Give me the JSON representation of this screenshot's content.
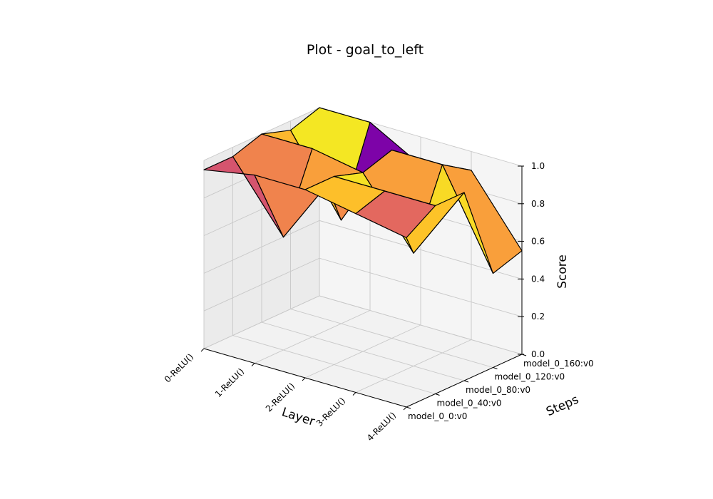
{
  "chart_data": {
    "type": "surface3d",
    "title": "Plot - goal_to_left",
    "xlabel": "Layer",
    "ylabel": "Steps",
    "zlabel": "Score",
    "x_categories": [
      "0-ReLU()",
      "1-ReLU()",
      "2-ReLU()",
      "3-ReLU()",
      "4-ReLU()"
    ],
    "y_categories": [
      "model_0_0:v0",
      "model_0_40:v0",
      "model_0_80:v0",
      "model_0_120:v0",
      "model_0_160:v0"
    ],
    "z_ticks": [
      "0.0",
      "0.2",
      "0.4",
      "0.6",
      "0.8",
      "1.0"
    ],
    "zlim": [
      0,
      1
    ],
    "colormap": "plasma",
    "grid": true,
    "cell_values": [
      [
        0.55,
        0.7,
        0.85,
        0.96
      ],
      [
        0.7,
        0.78,
        0.72,
        0.25
      ],
      [
        0.87,
        0.95,
        0.78,
        0.72
      ],
      [
        0.62,
        0.88,
        0.93,
        0.78
      ]
    ],
    "z_values": [
      [
        0.95,
        0.95,
        1.0,
        0.95,
        1.0
      ],
      [
        1.0,
        0.6,
        1.0,
        0.55,
        1.0
      ],
      [
        1.0,
        1.0,
        0.95,
        1.0,
        0.85
      ],
      [
        0.95,
        1.0,
        0.6,
        1.0,
        0.9
      ],
      [
        0.9,
        1.0,
        1.0,
        0.5,
        0.55
      ]
    ]
  }
}
